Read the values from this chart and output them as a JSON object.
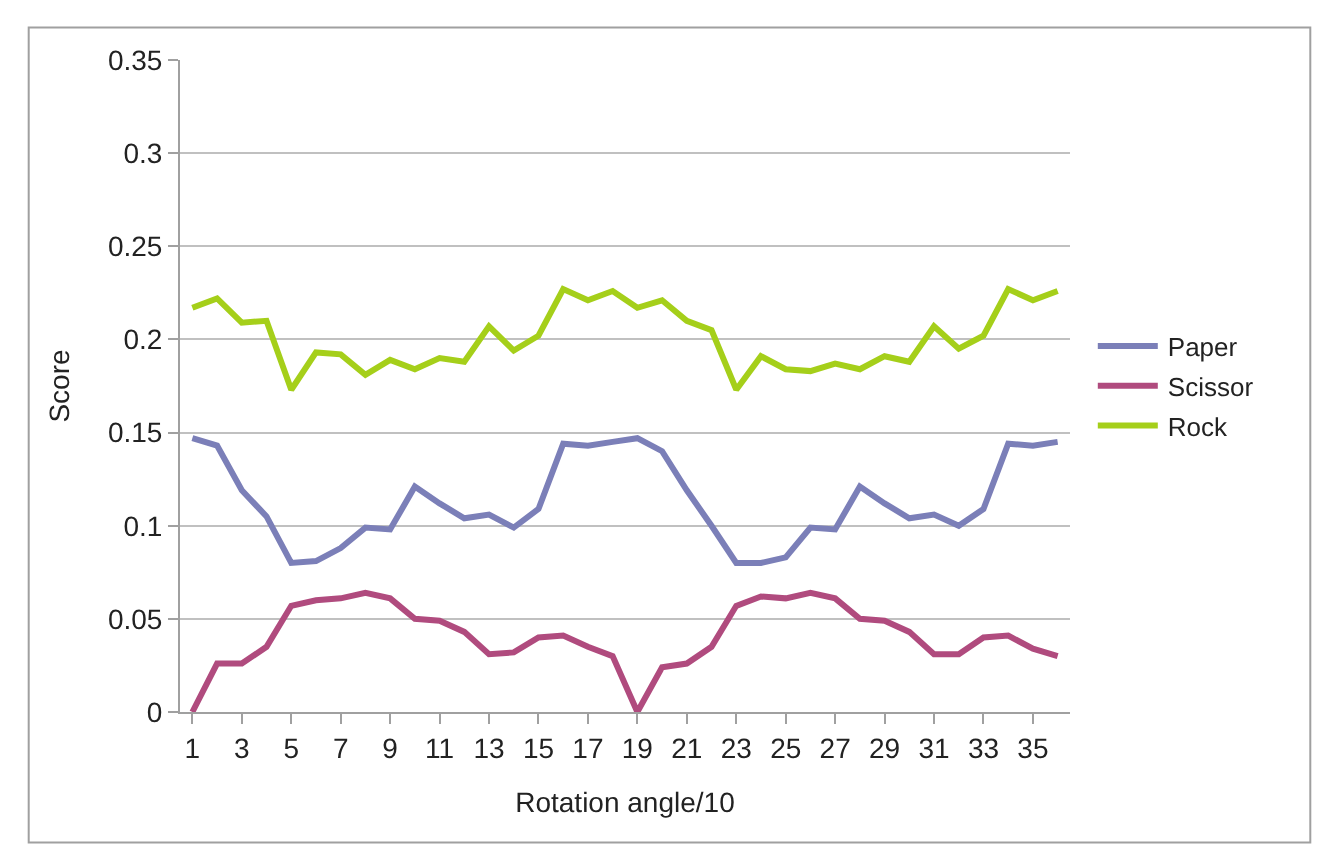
{
  "chart_data": {
    "type": "line",
    "xlabel": "Rotation angle/10",
    "ylabel": "Score",
    "x": [
      1,
      2,
      3,
      4,
      5,
      6,
      7,
      8,
      9,
      10,
      11,
      12,
      13,
      14,
      15,
      16,
      17,
      18,
      19,
      20,
      21,
      22,
      23,
      24,
      25,
      26,
      27,
      28,
      29,
      30,
      31,
      32,
      33,
      34,
      35,
      36
    ],
    "xlim": [
      0.5,
      36.5
    ],
    "xticks": [
      1,
      3,
      5,
      7,
      9,
      11,
      13,
      15,
      17,
      19,
      21,
      23,
      25,
      27,
      29,
      31,
      33,
      35
    ],
    "ylim": [
      0,
      0.35
    ],
    "yticks": [
      0,
      0.05,
      0.1,
      0.15,
      0.2,
      0.25,
      0.3,
      0.35
    ],
    "grid": "y",
    "legend": "right",
    "marker": "none",
    "line_style": "solid",
    "series": [
      {
        "name": "Paper",
        "color": "#7b7fb8",
        "values": [
          0.147,
          0.143,
          0.119,
          0.105,
          0.08,
          0.081,
          0.088,
          0.099,
          0.098,
          0.121,
          0.112,
          0.104,
          0.106,
          0.099,
          0.109,
          0.144,
          0.143,
          0.145,
          0.147,
          0.14,
          0.119,
          0.1,
          0.08,
          0.08,
          0.083,
          0.099,
          0.098,
          0.121,
          0.112,
          0.104,
          0.106,
          0.1,
          0.109,
          0.144,
          0.143,
          0.145
        ]
      },
      {
        "name": "Scissor",
        "color": "#b04b7e",
        "values": [
          0,
          0.026,
          0.026,
          0.035,
          0.057,
          0.06,
          0.061,
          0.064,
          0.061,
          0.05,
          0.049,
          0.043,
          0.031,
          0.032,
          0.04,
          0.041,
          0.035,
          0.03,
          0,
          0.024,
          0.026,
          0.035,
          0.057,
          0.062,
          0.061,
          0.064,
          0.061,
          0.05,
          0.049,
          0.043,
          0.031,
          0.031,
          0.04,
          0.041,
          0.034,
          0.03
        ]
      },
      {
        "name": "Rock",
        "color": "#a5cf1a",
        "values": [
          0.217,
          0.222,
          0.209,
          0.21,
          0.173,
          0.193,
          0.192,
          0.181,
          0.189,
          0.184,
          0.19,
          0.188,
          0.207,
          0.194,
          0.202,
          0.227,
          0.221,
          0.226,
          0.217,
          0.221,
          0.21,
          0.205,
          0.173,
          0.191,
          0.184,
          0.183,
          0.187,
          0.184,
          0.191,
          0.188,
          0.207,
          0.195,
          0.202,
          0.227,
          0.221,
          0.226
        ]
      }
    ]
  }
}
